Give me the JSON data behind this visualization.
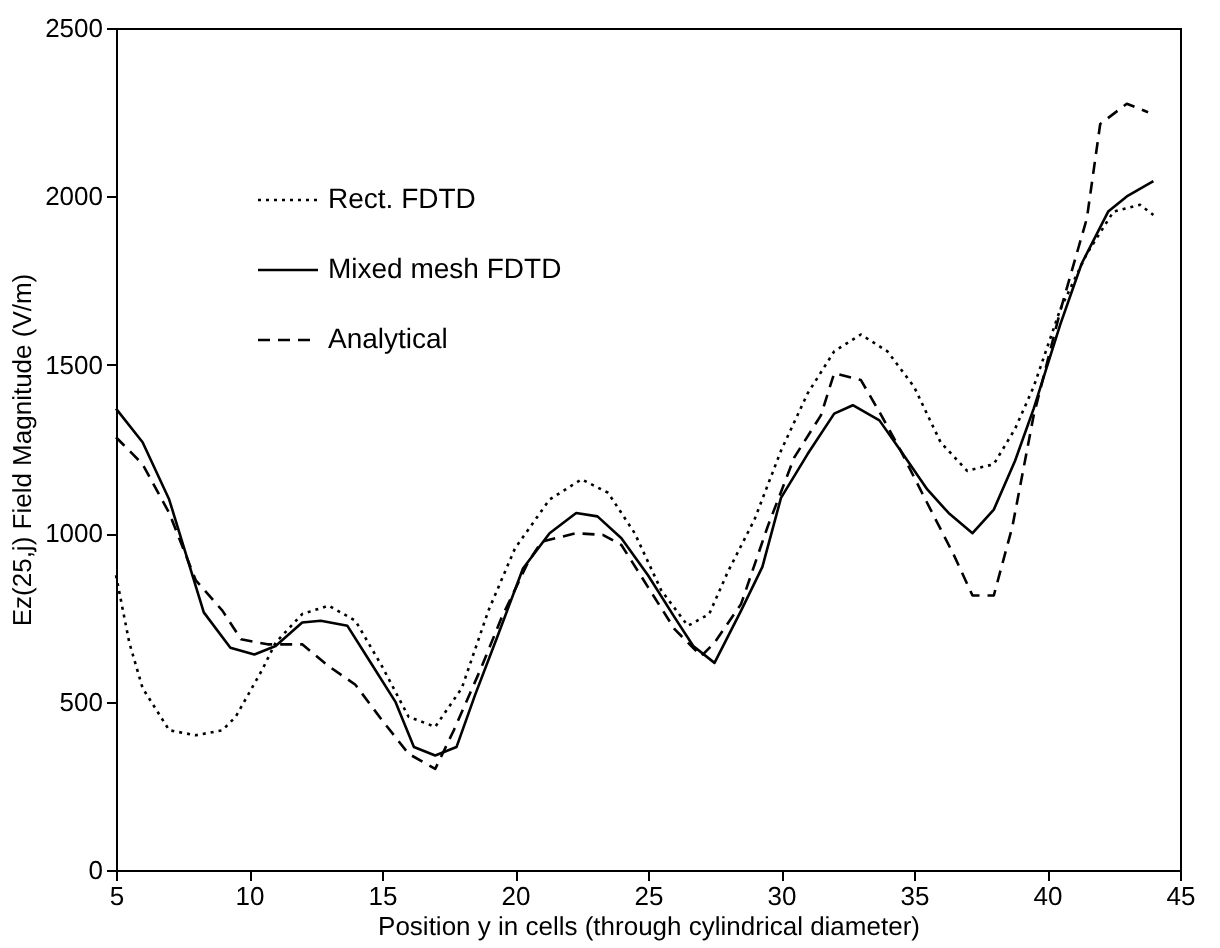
{
  "chart_data": {
    "type": "line",
    "xlabel": "Position y in cells (through cylindrical diameter)",
    "ylabel": "Ez(25,j)  Field  Magnitude (V/m)",
    "xlim": [
      5,
      45
    ],
    "xticks": [
      5,
      10,
      15,
      20,
      25,
      30,
      35,
      40,
      45
    ],
    "ylim": [
      0,
      2500
    ],
    "yticks": [
      0,
      500,
      1000,
      1500,
      2000,
      2500
    ],
    "grid": false,
    "legend": "top left",
    "marker": "none",
    "series": [
      {
        "name": "Rect. FDTD",
        "color": "#000000",
        "line_style": "dotted",
        "x": [
          5,
          5.5,
          6,
          7,
          8,
          9,
          9.5,
          10.5,
          11,
          12,
          13,
          14,
          15,
          16,
          17,
          18,
          19,
          20,
          21.3,
          22.5,
          23.5,
          24.5,
          25.5,
          26.5,
          27.3,
          28,
          29,
          30,
          31,
          32,
          33,
          34,
          35,
          36,
          37,
          38,
          38.8,
          39.5,
          40.5,
          41.5,
          42.5,
          43.5,
          44
        ],
        "values": [
          875,
          675,
          540,
          415,
          400,
          415,
          455,
          595,
          675,
          760,
          785,
          740,
          605,
          455,
          425,
          540,
          770,
          955,
          1100,
          1160,
          1120,
          1000,
          830,
          725,
          760,
          885,
          1040,
          1245,
          1415,
          1540,
          1590,
          1540,
          1435,
          1270,
          1185,
          1205,
          1310,
          1435,
          1665,
          1830,
          1955,
          1975,
          1945
        ]
      },
      {
        "name": "Mixed mesh FDTD",
        "color": "#000000",
        "line_style": "solid",
        "x": [
          5,
          6,
          7,
          8.3,
          9.3,
          10.2,
          11,
          12,
          12.7,
          13.7,
          14.5,
          15.5,
          16.2,
          17,
          17.8,
          18.5,
          19.3,
          20.3,
          21.3,
          22.3,
          23.1,
          24,
          25,
          26,
          26.7,
          27.5,
          28.5,
          29.3,
          30,
          31,
          32,
          32.7,
          33.7,
          34.5,
          35.5,
          36.3,
          37.2,
          38,
          38.8,
          39.5,
          40.5,
          41.3,
          42.3,
          43,
          44
        ],
        "values": [
          1370,
          1270,
          1100,
          765,
          660,
          640,
          665,
          735,
          740,
          725,
          625,
          500,
          365,
          340,
          365,
          520,
          685,
          895,
          1000,
          1060,
          1050,
          985,
          875,
          750,
          665,
          615,
          770,
          900,
          1105,
          1235,
          1355,
          1380,
          1335,
          1245,
          1130,
          1060,
          1000,
          1070,
          1215,
          1370,
          1620,
          1800,
          1955,
          2000,
          2045
        ]
      },
      {
        "name": "Analytical",
        "color": "#000000",
        "line_style": "dashed",
        "x": [
          5,
          6,
          7,
          8,
          9,
          9.7,
          10.7,
          12,
          13,
          14,
          15,
          16,
          17,
          17.7,
          18.7,
          19.5,
          20.5,
          21,
          22.3,
          23.3,
          24,
          25,
          26,
          27,
          27.5,
          28.5,
          29.5,
          30.5,
          31.5,
          32,
          33,
          33.7,
          34.5,
          35.3,
          36.5,
          37.2,
          38,
          38.7,
          39.5,
          40.5,
          41.5,
          42,
          43,
          43.8
        ],
        "values": [
          1285,
          1205,
          1060,
          860,
          770,
          685,
          670,
          670,
          605,
          550,
          445,
          345,
          300,
          415,
          595,
          750,
          915,
          975,
          1000,
          995,
          965,
          840,
          715,
          635,
          675,
          790,
          1020,
          1225,
          1350,
          1475,
          1455,
          1360,
          1245,
          1120,
          935,
          815,
          815,
          1020,
          1350,
          1660,
          1935,
          2215,
          2275,
          2250
        ]
      }
    ]
  }
}
